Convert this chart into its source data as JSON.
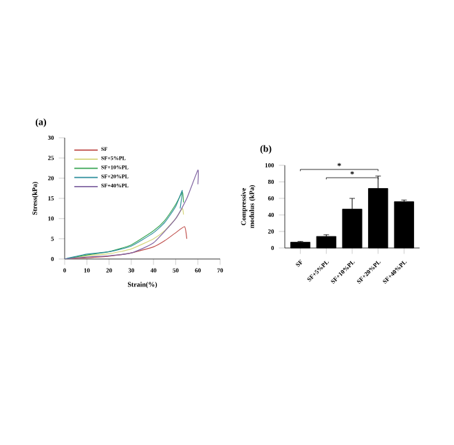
{
  "chart_data": [
    {
      "type": "line",
      "title": "(a)",
      "xlabel": "Strain(%)",
      "ylabel": "Stress(kPa)",
      "xlim": [
        0,
        70
      ],
      "xticks": [
        0,
        10,
        20,
        30,
        40,
        50,
        60,
        70
      ],
      "ylim": [
        0,
        30
      ],
      "yticks": [
        0,
        5,
        10,
        15,
        20,
        25,
        30
      ],
      "legend": "top left",
      "grid": false,
      "series": [
        {
          "name": "SF",
          "color": "#c0504d",
          "x": [
            0,
            10,
            20,
            30,
            40,
            45,
            50,
            54,
            55
          ],
          "values": [
            0,
            0.3,
            0.7,
            1.5,
            3,
            4.5,
            6.5,
            8,
            5
          ]
        },
        {
          "name": "SF+5%PL",
          "color": "#d6d67a",
          "x": [
            0,
            10,
            20,
            30,
            40,
            45,
            50,
            53,
            53.5
          ],
          "values": [
            0,
            0.8,
            1.3,
            2.5,
            5,
            7,
            10,
            12.5,
            11
          ]
        },
        {
          "name": "SF+10%PL",
          "color": "#3aa655",
          "x": [
            0,
            10,
            20,
            30,
            40,
            45,
            50,
            53,
            53.5
          ],
          "values": [
            0,
            1,
            1.8,
            3.5,
            7,
            9.5,
            13.5,
            16.5,
            14
          ]
        },
        {
          "name": "SF+20%PL",
          "color": "#2f8f9d",
          "x": [
            0,
            10,
            20,
            30,
            40,
            45,
            50,
            53,
            52
          ],
          "values": [
            0,
            1.2,
            1.8,
            3.2,
            6.5,
            9,
            13,
            17,
            12.5
          ]
        },
        {
          "name": "SF+40%PL",
          "color": "#8064a2",
          "x": [
            0,
            10,
            20,
            30,
            40,
            50,
            55,
            60,
            60
          ],
          "values": [
            0,
            0.5,
            0.8,
            1.5,
            4,
            10,
            15,
            22,
            18.5
          ]
        }
      ]
    },
    {
      "type": "bar",
      "title": "(b)",
      "ylabel": "Compressive modulus (kPa)",
      "categories": [
        "SF",
        "SF+5%PL",
        "SF+10%PL",
        "SF+20%PL",
        "SF+40%PL"
      ],
      "values": [
        7,
        14,
        47,
        72,
        56
      ],
      "errors": [
        1,
        2,
        13,
        15,
        2
      ],
      "color": "#000000",
      "ylim": [
        0,
        100
      ],
      "yticks": [
        0,
        20,
        40,
        60,
        80,
        100
      ],
      "annotations": [
        "*",
        "*"
      ]
    }
  ]
}
